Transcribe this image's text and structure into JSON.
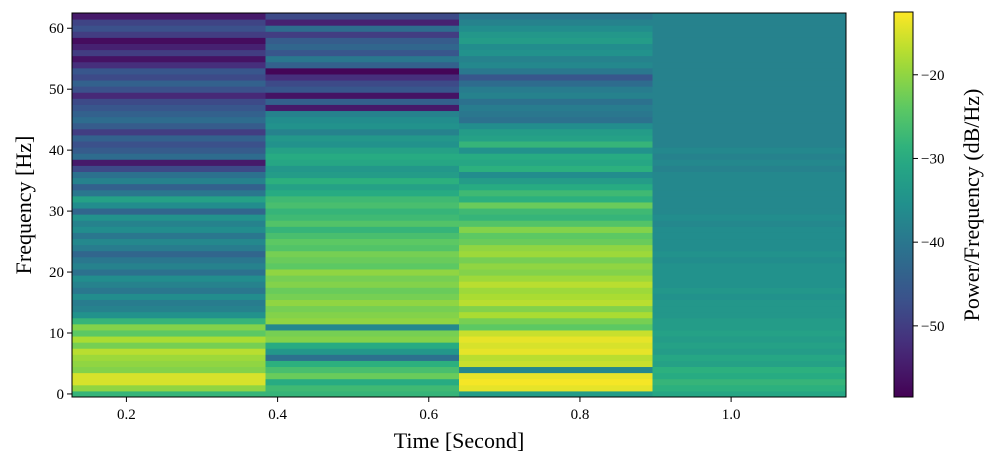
{
  "chart_data": {
    "type": "heatmap",
    "title": "",
    "xlabel": "Time [Second]",
    "ylabel": "Frequency [Hz]",
    "colorbar_label": "Power/Frequency (dB/Hz)",
    "colormap": "viridis",
    "x_ticks": [
      "0.2",
      "0.4",
      "0.6",
      "0.8",
      "1.0"
    ],
    "y_ticks": [
      "0",
      "10",
      "20",
      "30",
      "40",
      "50",
      "60"
    ],
    "colorbar_ticks": [
      "−20",
      "−30",
      "−40",
      "−50"
    ],
    "xlim": [
      0.128,
      1.152
    ],
    "ylim": [
      -0.5,
      62.5
    ],
    "clim": [
      -58.5,
      -12.5
    ],
    "time_bins": [
      0.256,
      0.512,
      0.768,
      1.024
    ],
    "frequencies": [
      0,
      1,
      2,
      3,
      4,
      5,
      6,
      7,
      8,
      9,
      10,
      11,
      12,
      13,
      14,
      15,
      16,
      17,
      18,
      19,
      20,
      21,
      22,
      23,
      24,
      25,
      26,
      27,
      28,
      29,
      30,
      31,
      32,
      33,
      34,
      35,
      36,
      37,
      38,
      39,
      40,
      41,
      42,
      43,
      44,
      45,
      46,
      47,
      48,
      49,
      50,
      51,
      52,
      53,
      54,
      55,
      56,
      57,
      58,
      59,
      60,
      61,
      62
    ],
    "power_db": [
      [
        -28,
        -20,
        -15,
        -15,
        -21,
        -20,
        -19,
        -17,
        -22,
        -18,
        -24,
        -21,
        -28,
        -35,
        -38,
        -39,
        -36,
        -40,
        -38,
        -36,
        -41,
        -38,
        -40,
        -43,
        -39,
        -37,
        -40,
        -36,
        -38,
        -35,
        -43,
        -36,
        -32,
        -40,
        -44,
        -38,
        -41,
        -48,
        -55,
        -42,
        -45,
        -47,
        -44,
        -50,
        -45,
        -42,
        -44,
        -46,
        -48,
        -53,
        -47,
        -44,
        -48,
        -46,
        -52,
        -56,
        -50,
        -54,
        -57,
        -50,
        -47,
        -49,
        -55
      ],
      [
        -28,
        -27,
        -30,
        -23,
        -26,
        -29,
        -41,
        -34,
        -30,
        -21,
        -22,
        -37,
        -20,
        -21,
        -22,
        -20,
        -22,
        -23,
        -21,
        -22,
        -20,
        -24,
        -23,
        -22,
        -25,
        -24,
        -26,
        -28,
        -25,
        -27,
        -28,
        -26,
        -27,
        -30,
        -32,
        -29,
        -33,
        -34,
        -31,
        -30,
        -32,
        -35,
        -34,
        -38,
        -35,
        -36,
        -38,
        -55,
        -44,
        -56,
        -46,
        -48,
        -52,
        -58,
        -44,
        -40,
        -46,
        -43,
        -45,
        -50,
        -42,
        -54,
        -48
      ],
      [
        -33,
        -14,
        -13,
        -14,
        -37,
        -16,
        -17,
        -14,
        -15,
        -14,
        -16,
        -24,
        -22,
        -18,
        -21,
        -17,
        -18,
        -19,
        -17,
        -19,
        -21,
        -20,
        -22,
        -19,
        -20,
        -23,
        -24,
        -21,
        -25,
        -28,
        -27,
        -23,
        -29,
        -27,
        -30,
        -33,
        -36,
        -29,
        -31,
        -30,
        -35,
        -28,
        -32,
        -33,
        -36,
        -41,
        -40,
        -39,
        -41,
        -38,
        -39,
        -42,
        -46,
        -40,
        -37,
        -38,
        -35,
        -36,
        -33,
        -34,
        -36,
        -38,
        -40
      ],
      [
        -31,
        -29,
        -28,
        -30,
        -29,
        -32,
        -31,
        -33,
        -32,
        -33,
        -32,
        -33,
        -33,
        -34,
        -34,
        -34,
        -35,
        -34,
        -35,
        -35,
        -35,
        -35,
        -36,
        -35,
        -36,
        -36,
        -36,
        -36,
        -37,
        -36,
        -37,
        -37,
        -37,
        -37,
        -37,
        -37,
        -37,
        -38,
        -37,
        -38,
        -37,
        -38,
        -38,
        -38,
        -38,
        -38,
        -38,
        -38,
        -38,
        -38,
        -38,
        -38,
        -38,
        -38,
        -38,
        -38,
        -38,
        -38,
        -38,
        -38,
        -38,
        -38,
        -38
      ]
    ]
  }
}
